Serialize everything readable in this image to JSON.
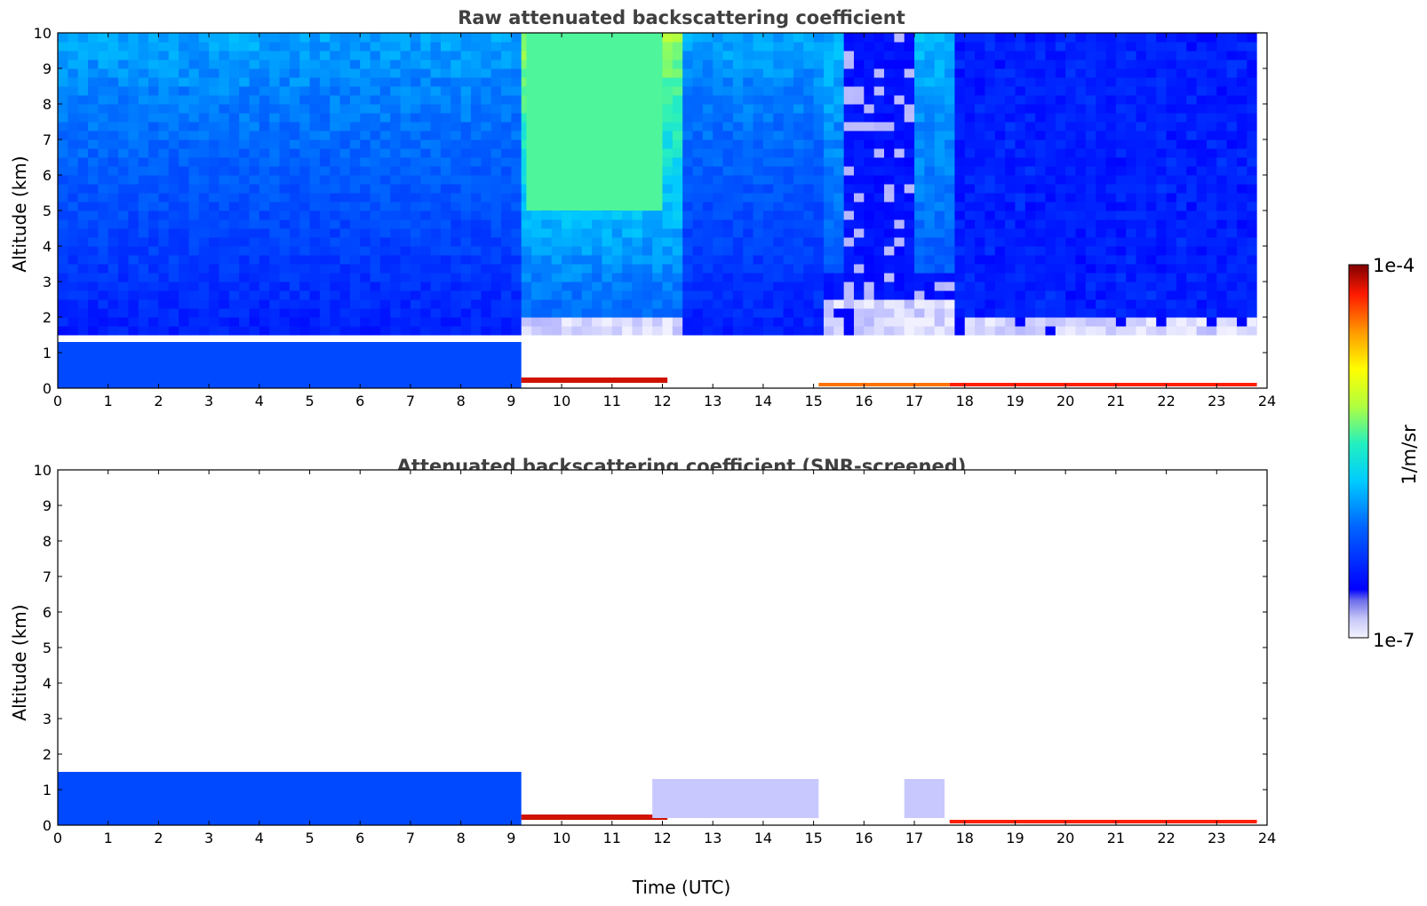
{
  "chart_data": [
    {
      "type": "heatmap",
      "title": "Raw attenuated backscattering coefficient",
      "xlabel": "",
      "ylabel": "Altitude (km)",
      "xlim": [
        0,
        24
      ],
      "ylim": [
        0,
        10
      ],
      "x_ticks": [
        "0",
        "1",
        "2",
        "3",
        "4",
        "5",
        "6",
        "7",
        "8",
        "9",
        "10",
        "11",
        "12",
        "13",
        "14",
        "15",
        "16",
        "17",
        "18",
        "19",
        "20",
        "21",
        "22",
        "23",
        "24"
      ],
      "y_ticks": [
        "0",
        "1",
        "2",
        "3",
        "4",
        "5",
        "6",
        "7",
        "8",
        "9",
        "10"
      ],
      "data_end_time": 23.8,
      "color_scale": "log",
      "value_range": [
        1e-07,
        0.0001
      ],
      "regions": [
        {
          "x": [
            0,
            9.2
          ],
          "y": [
            0,
            1.3
          ],
          "level": 0.22,
          "kind": "boundary-layer aerosol"
        },
        {
          "x": [
            9.2,
            12.1
          ],
          "y": [
            0.15,
            0.3
          ],
          "level": 0.95,
          "kind": "low cloud"
        },
        {
          "x": [
            17.7,
            23.8
          ],
          "y": [
            0.05,
            0.15
          ],
          "level": 0.92,
          "kind": "low cloud"
        },
        {
          "x": [
            15.1,
            17.7
          ],
          "y": [
            0.05,
            0.15
          ],
          "level": 0.85,
          "kind": "low cloud"
        },
        {
          "x": [
            9.3,
            12.0
          ],
          "y": [
            5.0,
            10.0
          ],
          "level": 0.55,
          "kind": "noise (daytime background)"
        }
      ]
    },
    {
      "type": "heatmap",
      "title": "Attenuated backscattering coefficient (SNR-screened)",
      "xlabel": "Time (UTC)",
      "ylabel": "Altitude (km)",
      "xlim": [
        0,
        24
      ],
      "ylim": [
        0,
        10
      ],
      "x_ticks": [
        "0",
        "1",
        "2",
        "3",
        "4",
        "5",
        "6",
        "7",
        "8",
        "9",
        "10",
        "11",
        "12",
        "13",
        "14",
        "15",
        "16",
        "17",
        "18",
        "19",
        "20",
        "21",
        "22",
        "23",
        "24"
      ],
      "y_ticks": [
        "0",
        "1",
        "2",
        "3",
        "4",
        "5",
        "6",
        "7",
        "8",
        "9",
        "10"
      ],
      "data_end_time": 23.8,
      "color_scale": "log",
      "value_range": [
        1e-07,
        0.0001
      ],
      "regions": [
        {
          "x": [
            0,
            9.2
          ],
          "y": [
            0,
            1.5
          ],
          "level": 0.22,
          "kind": "boundary-layer aerosol"
        },
        {
          "x": [
            9.2,
            12.1
          ],
          "y": [
            0.15,
            0.3
          ],
          "level": 0.95,
          "kind": "low cloud"
        },
        {
          "x": [
            11.8,
            15.1
          ],
          "y": [
            0.2,
            1.3
          ],
          "level": 0.04,
          "kind": "residual layer"
        },
        {
          "x": [
            16.8,
            17.6
          ],
          "y": [
            0.2,
            1.3
          ],
          "level": 0.04,
          "kind": "residual layer"
        },
        {
          "x": [
            17.7,
            23.8
          ],
          "y": [
            0.05,
            0.15
          ],
          "level": 0.92,
          "kind": "low cloud"
        }
      ]
    }
  ],
  "colorbar": {
    "max_label": "1e-4",
    "min_label": "1e-7",
    "unit_label": "1/m/sr",
    "colormap": "jet"
  }
}
